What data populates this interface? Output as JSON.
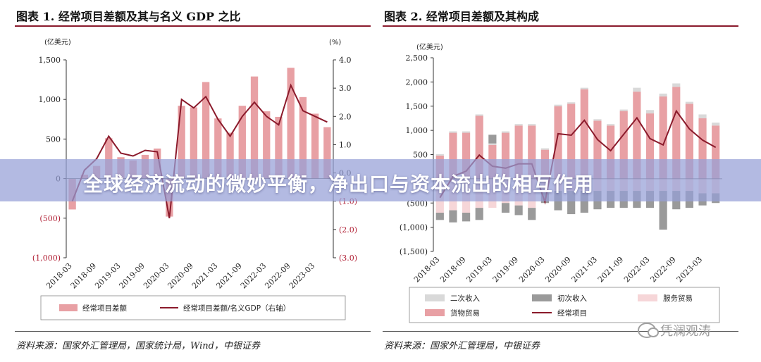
{
  "banner": {
    "headline": "全球经济流动的微妙平衡，净出口与资本流出的相互作用"
  },
  "watermark": {
    "text": "凭澜观涛",
    "icon": "wechat-icon"
  },
  "chart_data": [
    {
      "type": "bar",
      "title": "图表 1. 经常项目差额及其与名义 GDP 之比",
      "source": "资料来源：国家外汇管理局，国家统计局，Wind，中银证券",
      "left_unit": "(亿美元)",
      "right_unit": "(%)",
      "left_ticks": [
        "1,500",
        "1,000",
        "500",
        "0",
        "(500)",
        "(1,000)"
      ],
      "right_ticks": [
        "4.0",
        "3.0",
        "2.0",
        "1.0",
        "0.0",
        "(1.0)",
        "(2.0)",
        "(3.0)"
      ],
      "ylim_left": [
        -1000,
        1500
      ],
      "ylim_right": [
        -3,
        4
      ],
      "x_tick_labels": [
        "2018-03",
        "2018-09",
        "2019-03",
        "2019-09",
        "2020-03",
        "2020-09",
        "2021-03",
        "2021-09",
        "2022-03",
        "2022-09",
        "2023-03"
      ],
      "categories": [
        "2018-03",
        "2018-06",
        "2018-09",
        "2018-12",
        "2019-03",
        "2019-06",
        "2019-09",
        "2019-12",
        "2020-03",
        "2020-06",
        "2020-09",
        "2020-12",
        "2021-03",
        "2021-06",
        "2021-09",
        "2021-12",
        "2022-03",
        "2022-06",
        "2022-09",
        "2022-12",
        "2023-03",
        "2023-06"
      ],
      "series": [
        {
          "name": "经常项目差额",
          "kind": "bar",
          "axis": "left",
          "color": "#e8a0a4",
          "values": [
            -390,
            50,
            160,
            510,
            270,
            230,
            300,
            380,
            -480,
            920,
            900,
            1220,
            760,
            580,
            920,
            1290,
            850,
            780,
            1400,
            1030,
            820,
            650
          ]
        },
        {
          "name": "经常项目差额/名义GDP（右轴）",
          "kind": "line",
          "axis": "right",
          "color": "#8b1a2b",
          "values": [
            -1.0,
            0.1,
            0.5,
            1.3,
            0.7,
            0.6,
            0.8,
            0.75,
            -1.6,
            2.6,
            2.3,
            2.7,
            1.9,
            1.3,
            2.0,
            2.5,
            2.0,
            1.7,
            3.1,
            2.2,
            2.0,
            1.8
          ]
        }
      ],
      "legend": [
        "经常项目差额",
        "经常项目差额/名义GDP（右轴）"
      ]
    },
    {
      "type": "bar",
      "stacked": true,
      "title": "图表 2. 经常项目差额及其构成",
      "source": "资料来源：国家外汇管理局，中银证券",
      "left_unit": "(亿美元)",
      "left_ticks": [
        "2,500",
        "2,000",
        "1,500",
        "1,000",
        "500",
        "0",
        "(500)",
        "(1,000)",
        "(1,500)"
      ],
      "ylim": [
        -1500,
        2500
      ],
      "x_tick_labels": [
        "2018-03",
        "2018-09",
        "2019-03",
        "2019-09",
        "2020-03",
        "2020-09",
        "2021-03",
        "2021-09",
        "2022-03",
        "2022-09",
        "2023-03"
      ],
      "categories": [
        "2018-03",
        "2018-06",
        "2018-09",
        "2018-12",
        "2019-03",
        "2019-06",
        "2019-09",
        "2019-12",
        "2020-03",
        "2020-06",
        "2020-09",
        "2020-12",
        "2021-03",
        "2021-06",
        "2021-09",
        "2021-12",
        "2022-03",
        "2022-06",
        "2022-09",
        "2022-12",
        "2023-03",
        "2023-06"
      ],
      "series": [
        {
          "name": "货物贸易",
          "color": "#e8a0a4",
          "values": [
            480,
            950,
            950,
            1300,
            700,
            950,
            1100,
            1100,
            600,
            1500,
            1550,
            1850,
            1200,
            1100,
            1400,
            1800,
            1350,
            1700,
            1900,
            1550,
            1250,
            1100
          ]
        },
        {
          "name": "服务贸易",
          "color": "#f6d6d8",
          "values": [
            -700,
            -650,
            -700,
            -600,
            -600,
            -500,
            -550,
            -600,
            -300,
            -250,
            -250,
            -250,
            -250,
            -250,
            -250,
            -250,
            -250,
            -250,
            -250,
            -250,
            -300,
            -300
          ]
        },
        {
          "name": "初次收入",
          "color": "#9a9a9a",
          "values": [
            -150,
            -250,
            -180,
            -250,
            180,
            -200,
            -200,
            -250,
            -200,
            -400,
            -480,
            -450,
            -380,
            -350,
            -350,
            -350,
            -350,
            -800,
            -380,
            -350,
            -250,
            -200
          ]
        },
        {
          "name": "二次收入",
          "color": "#d9d9d9",
          "values": [
            30,
            30,
            30,
            30,
            30,
            30,
            30,
            30,
            30,
            30,
            30,
            30,
            30,
            30,
            30,
            80,
            70,
            60,
            70,
            40,
            80,
            60
          ]
        },
        {
          "name": "经常项目",
          "kind": "line",
          "color": "#8b1a2b",
          "values": [
            -390,
            50,
            160,
            490,
            260,
            220,
            310,
            310,
            -480,
            930,
            900,
            1210,
            810,
            580,
            920,
            1260,
            830,
            700,
            1400,
            1030,
            800,
            650
          ]
        }
      ],
      "legend": [
        "二次收入",
        "初次收入",
        "服务贸易",
        "货物贸易",
        "经常项目"
      ]
    }
  ]
}
